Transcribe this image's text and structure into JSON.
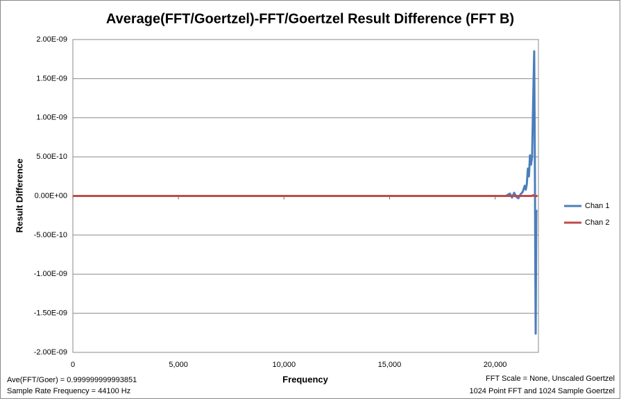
{
  "chart_data": {
    "type": "line",
    "title": "Average(FFT/Goertzel)-FFT/Goertzel Result Difference (FFT B)",
    "x_label": "Frequency",
    "y_label": "Result Difference",
    "x": [
      0,
      2000,
      4000,
      6000,
      8000,
      10000,
      12000,
      14000,
      16000,
      18000,
      20000,
      20500,
      20700,
      20800,
      20900,
      21000,
      21100,
      21200,
      21300,
      21400,
      21450,
      21500,
      21550,
      21600,
      21650,
      21700,
      21750,
      21800,
      21850,
      21880,
      21900,
      21920,
      21950,
      21980,
      22000
    ],
    "series": [
      {
        "name": "Chan 1",
        "color": "#4a7ebb",
        "values": [
          0,
          0,
          0,
          0,
          0,
          0,
          0,
          0,
          0,
          0,
          0,
          0,
          3e-11,
          -2e-11,
          4e-11,
          -1e-11,
          -3e-11,
          2e-11,
          5e-11,
          1.3e-10,
          8e-11,
          1.5e-10,
          3.5e-10,
          2.5e-10,
          5.2e-10,
          4e-10,
          5e-10,
          1.2e-09,
          1.85e-09,
          5e-10,
          -8e-10,
          -1.76e-09,
          -2e-10,
          -1.9e-10,
          -1.9e-10
        ]
      },
      {
        "name": "Chan 2",
        "color": "#be4b48",
        "values": [
          0,
          0,
          0,
          0,
          0,
          0,
          0,
          0,
          0,
          0,
          0,
          0,
          0,
          0,
          0,
          0,
          0,
          0,
          0,
          0,
          0,
          0,
          0,
          0,
          0,
          0,
          0,
          1e-11,
          0,
          0,
          -1e-11,
          0,
          0,
          0,
          0
        ]
      }
    ],
    "xlim": [
      0,
      22050
    ],
    "xticks": [
      0,
      {
        "value": 5000,
        "label": "5,000"
      },
      {
        "value": 10000,
        "label": "10,000"
      },
      {
        "value": 15000,
        "label": "15,000"
      },
      {
        "value": 20000,
        "label": "20,000"
      }
    ],
    "ylim": [
      -2e-09,
      2e-09
    ],
    "yticks": [
      {
        "value": -2e-09,
        "label": "-2.00E-09"
      },
      {
        "value": -1.5e-09,
        "label": "-1.50E-09"
      },
      {
        "value": -1e-09,
        "label": "-1.00E-09"
      },
      {
        "value": -5e-10,
        "label": "-5.00E-10"
      },
      {
        "value": 0,
        "label": "0.00E+00"
      },
      {
        "value": 5e-10,
        "label": "5.00E-10"
      },
      {
        "value": 1e-09,
        "label": "1.00E-09"
      },
      {
        "value": 1.5e-09,
        "label": "1.50E-09"
      },
      {
        "value": 2e-09,
        "label": "2.00E-09"
      }
    ],
    "grid": true,
    "legend": "right",
    "annotations": [
      "Ave(FFT/Goer) = 0.999999999993851",
      "Sample Rate Frequency = 44100  Hz",
      "FFT Scale = None, Unscaled Goertzel",
      "1024 Point FFT and 1024  Sample Goertzel"
    ]
  }
}
